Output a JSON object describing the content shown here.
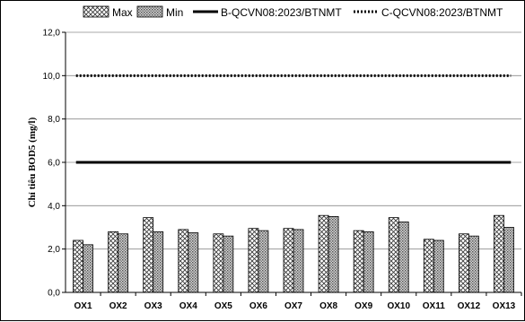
{
  "chart_data": {
    "type": "bar",
    "title": "",
    "xlabel": "",
    "ylabel": "Chỉ tiêu BOD5 (mg/l)",
    "ylim": [
      0,
      12
    ],
    "yticks": [
      "0,0",
      "2,0",
      "4,0",
      "6,0",
      "8,0",
      "10,0",
      "12,0"
    ],
    "categories": [
      "OX1",
      "OX2",
      "OX3",
      "OX4",
      "OX5",
      "OX6",
      "OX7",
      "OX8",
      "OX9",
      "OX10",
      "OX11",
      "OX12",
      "OX13"
    ],
    "series": [
      {
        "name": "Max",
        "values": [
          2.4,
          2.8,
          3.45,
          2.9,
          2.7,
          2.95,
          2.95,
          3.55,
          2.85,
          3.45,
          2.45,
          2.7,
          3.55
        ]
      },
      {
        "name": "Min",
        "values": [
          2.2,
          2.7,
          2.8,
          2.75,
          2.6,
          2.85,
          2.9,
          3.5,
          2.8,
          3.25,
          2.4,
          2.6,
          3.0
        ]
      }
    ],
    "reference_lines": [
      {
        "name": "B-QCVN08:2023/BTNMT",
        "value": 6.0,
        "style": "solid"
      },
      {
        "name": "C-QCVN08:2023/BTNMT",
        "value": 10.0,
        "style": "dotted"
      }
    ],
    "grid": true,
    "legend_position": "top"
  }
}
